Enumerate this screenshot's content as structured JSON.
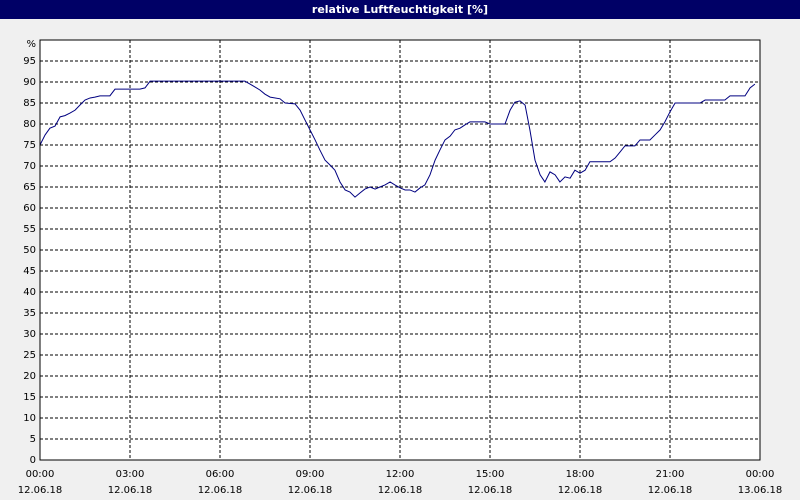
{
  "chart_data": {
    "type": "line",
    "title": "relative Luftfeuchtigkeit [%]",
    "y_label": "%",
    "xlim": [
      0,
      24
    ],
    "xticks": [
      {
        "value": 0,
        "label": "00:00\n12.06.18"
      },
      {
        "value": 3,
        "label": "03:00\n12.06.18"
      },
      {
        "value": 6,
        "label": "06:00\n12.06.18"
      },
      {
        "value": 9,
        "label": "09:00\n12.06.18"
      },
      {
        "value": 12,
        "label": "12:00\n12.06.18"
      },
      {
        "value": 15,
        "label": "15:00\n12.06.18"
      },
      {
        "value": 18,
        "label": "18:00\n12.06.18"
      },
      {
        "value": 21,
        "label": "21:00\n12.06.18"
      },
      {
        "value": 24,
        "label": "00:00\n13.06.18"
      }
    ],
    "ylim": [
      0,
      100
    ],
    "yticks": [
      0,
      5,
      10,
      15,
      20,
      25,
      30,
      35,
      40,
      45,
      50,
      55,
      60,
      65,
      70,
      75,
      80,
      85,
      90,
      95
    ],
    "grid": true,
    "x": [
      0,
      0.17,
      0.33,
      0.5,
      0.67,
      0.83,
      1,
      1.17,
      1.33,
      1.5,
      1.67,
      1.83,
      2,
      2.33,
      2.5,
      3.33,
      3.5,
      3.67,
      6.83,
      7,
      7.17,
      7.33,
      7.5,
      7.67,
      8,
      8.17,
      8.5,
      8.67,
      8.83,
      9,
      9.17,
      9.33,
      9.5,
      9.67,
      9.83,
      10,
      10.17,
      10.33,
      10.5,
      10.67,
      10.83,
      11,
      11.17,
      11.33,
      11.5,
      11.67,
      11.83,
      12,
      12.17,
      12.33,
      12.5,
      12.67,
      12.83,
      13,
      13.17,
      13.33,
      13.5,
      13.67,
      13.83,
      14,
      14.17,
      14.33,
      14.83,
      15,
      15.5,
      15.67,
      15.83,
      16,
      16.17,
      16.33,
      16.5,
      16.67,
      16.83,
      17,
      17.17,
      17.33,
      17.5,
      17.67,
      17.83,
      18,
      18.17,
      18.33,
      19,
      19.17,
      19.33,
      19.5,
      19.83,
      20,
      20.33,
      20.5,
      20.67,
      20.83,
      21,
      21.17,
      22,
      22.17,
      22.83,
      23,
      23.5,
      23.67,
      23.83
    ],
    "series": [
      {
        "color": "#000080",
        "values": [
          75,
          77.4,
          79,
          79.5,
          81.7,
          82,
          82.6,
          83.3,
          84.5,
          85.7,
          86.2,
          86.4,
          86.7,
          86.7,
          88.3,
          88.3,
          88.6,
          90.2,
          90.2,
          89.5,
          88.8,
          88.1,
          87.1,
          86.4,
          86,
          85,
          84.8,
          83.3,
          81,
          78.6,
          76.2,
          73.8,
          71.4,
          70.2,
          69,
          66.2,
          64.3,
          63.8,
          62.6,
          63.6,
          64.5,
          65,
          64.5,
          65,
          65.5,
          66.2,
          65.5,
          64.8,
          64.3,
          64.3,
          63.8,
          64.8,
          65.5,
          67.9,
          71.4,
          73.8,
          76.2,
          77.1,
          78.6,
          79,
          79.8,
          80.5,
          80.5,
          80,
          80,
          83.3,
          85.2,
          85.5,
          84.5,
          78.6,
          71.4,
          67.9,
          66.2,
          68.6,
          67.9,
          66.2,
          67.4,
          67.1,
          69,
          68.3,
          69,
          71,
          71,
          71.9,
          73.3,
          74.8,
          74.8,
          76.2,
          76.2,
          77.4,
          78.6,
          80.5,
          82.9,
          85,
          85,
          85.7,
          85.7,
          86.7,
          86.7,
          88.6,
          89.5
        ]
      }
    ]
  }
}
